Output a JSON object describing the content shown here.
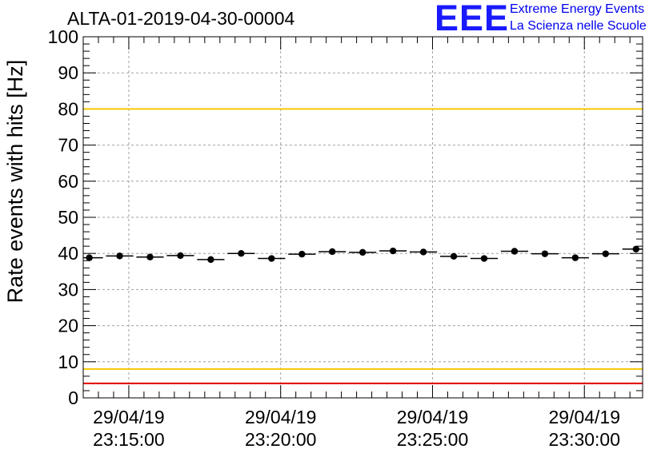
{
  "header": {
    "run_title": "ALTA-01-2019-04-30-00004",
    "logo": "EEE",
    "logo_line1": "Extreme Energy Events",
    "logo_line2": "La Scienza nelle Scuole"
  },
  "chart_data": {
    "type": "scatter",
    "title": "ALTA-01-2019-04-30-00004",
    "ylabel": "Rate events with hits [Hz]",
    "xlabel": "",
    "ylim": [
      0,
      100
    ],
    "yticks": [
      0,
      10,
      20,
      30,
      40,
      50,
      60,
      70,
      80,
      90,
      100
    ],
    "xlim": [
      "29/04/19 23:13:30",
      "29/04/19 23:31:55"
    ],
    "xticks": [
      {
        "date": "29/04/19",
        "time": "23:15:00"
      },
      {
        "date": "29/04/19",
        "time": "23:20:00"
      },
      {
        "date": "29/04/19",
        "time": "23:25:00"
      },
      {
        "date": "29/04/19",
        "time": "23:30:00"
      }
    ],
    "grid": true,
    "reference_lines": [
      {
        "y": 80,
        "color": "#f5c800"
      },
      {
        "y": 8,
        "color": "#f5c800"
      },
      {
        "y": 4,
        "color": "#e00000"
      }
    ],
    "series": [
      {
        "x": [
          "23:13:42",
          "23:14:42",
          "23:15:42",
          "23:16:42",
          "23:17:42",
          "23:18:42",
          "23:19:42",
          "23:20:42",
          "23:21:42",
          "23:22:42",
          "23:23:42",
          "23:24:42",
          "23:25:42",
          "23:26:42",
          "23:27:42",
          "23:28:42",
          "23:29:42",
          "23:30:42",
          "23:31:42"
        ],
        "values": [
          38.8,
          39.3,
          39.0,
          39.4,
          38.3,
          40.0,
          38.6,
          39.8,
          40.5,
          40.3,
          40.7,
          40.4,
          39.2,
          38.6,
          40.6,
          39.9,
          38.8,
          39.9,
          41.2
        ],
        "bin_half_width_s": 27,
        "color": "#000000"
      }
    ]
  }
}
